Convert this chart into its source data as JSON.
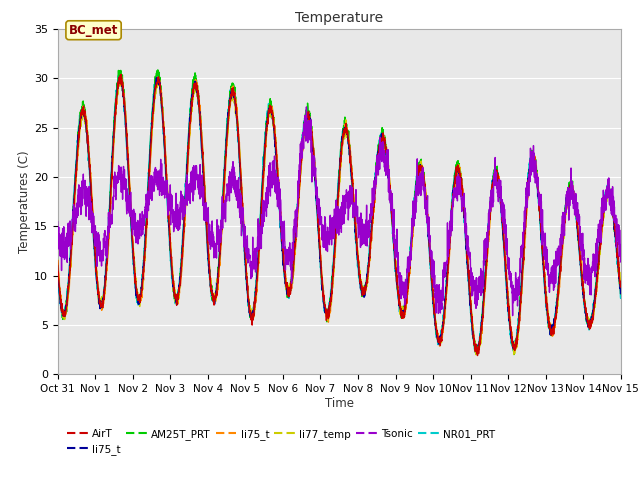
{
  "title": "Temperature",
  "xlabel": "Time",
  "ylabel": "Temperatures (C)",
  "ylim": [
    0,
    35
  ],
  "plot_bg_color": "#e8e8e8",
  "series_colors": {
    "AirT": "#cc0000",
    "li75_t_blue": "#000099",
    "AM25T_PRT": "#00cc00",
    "li75_t_orange": "#ff8800",
    "li77_temp": "#cccc00",
    "Tsonic": "#9900cc",
    "NR01_PRT": "#00cccc"
  },
  "legend_entries": [
    {
      "label": "AirT",
      "color": "#cc0000"
    },
    {
      "label": "li75_t",
      "color": "#000099"
    },
    {
      "label": "AM25T_PRT",
      "color": "#00cc00"
    },
    {
      "label": "li75_t",
      "color": "#ff8800"
    },
    {
      "label": "li77_temp",
      "color": "#cccc00"
    },
    {
      "label": "Tsonic",
      "color": "#9900cc"
    },
    {
      "label": "NR01_PRT",
      "color": "#00cccc"
    }
  ],
  "annotation_text": "BC_met",
  "xtick_labels": [
    "Oct 31",
    "Nov 1",
    "Nov 2",
    "Nov 3",
    "Nov 4",
    "Nov 5",
    "Nov 6",
    "Nov 7",
    "Nov 8",
    "Nov 9",
    "Nov 10",
    "Nov 11",
    "Nov 12",
    "Nov 13",
    "Nov 14",
    "Nov 15"
  ],
  "ytick_positions": [
    0,
    5,
    10,
    15,
    20,
    25,
    30,
    35
  ],
  "day_peaks": [
    26,
    30,
    30,
    29.5,
    29,
    27,
    26.5,
    25,
    24.5,
    21,
    21,
    20,
    22.5,
    19,
    18.5
  ],
  "day_troughs": [
    6,
    7.5,
    7.5,
    7.5,
    7.5,
    5,
    10,
    4,
    10.5,
    4,
    3,
    2,
    3,
    5,
    5
  ],
  "tsonic_peaks": [
    18,
    20,
    20,
    20,
    20,
    18.5,
    27,
    16,
    23,
    20,
    19,
    19,
    22,
    18.5,
    18.5
  ],
  "tsonic_troughs": [
    13,
    12,
    16,
    16,
    12,
    11,
    12,
    15,
    14,
    6,
    8,
    8,
    8,
    10,
    10
  ]
}
